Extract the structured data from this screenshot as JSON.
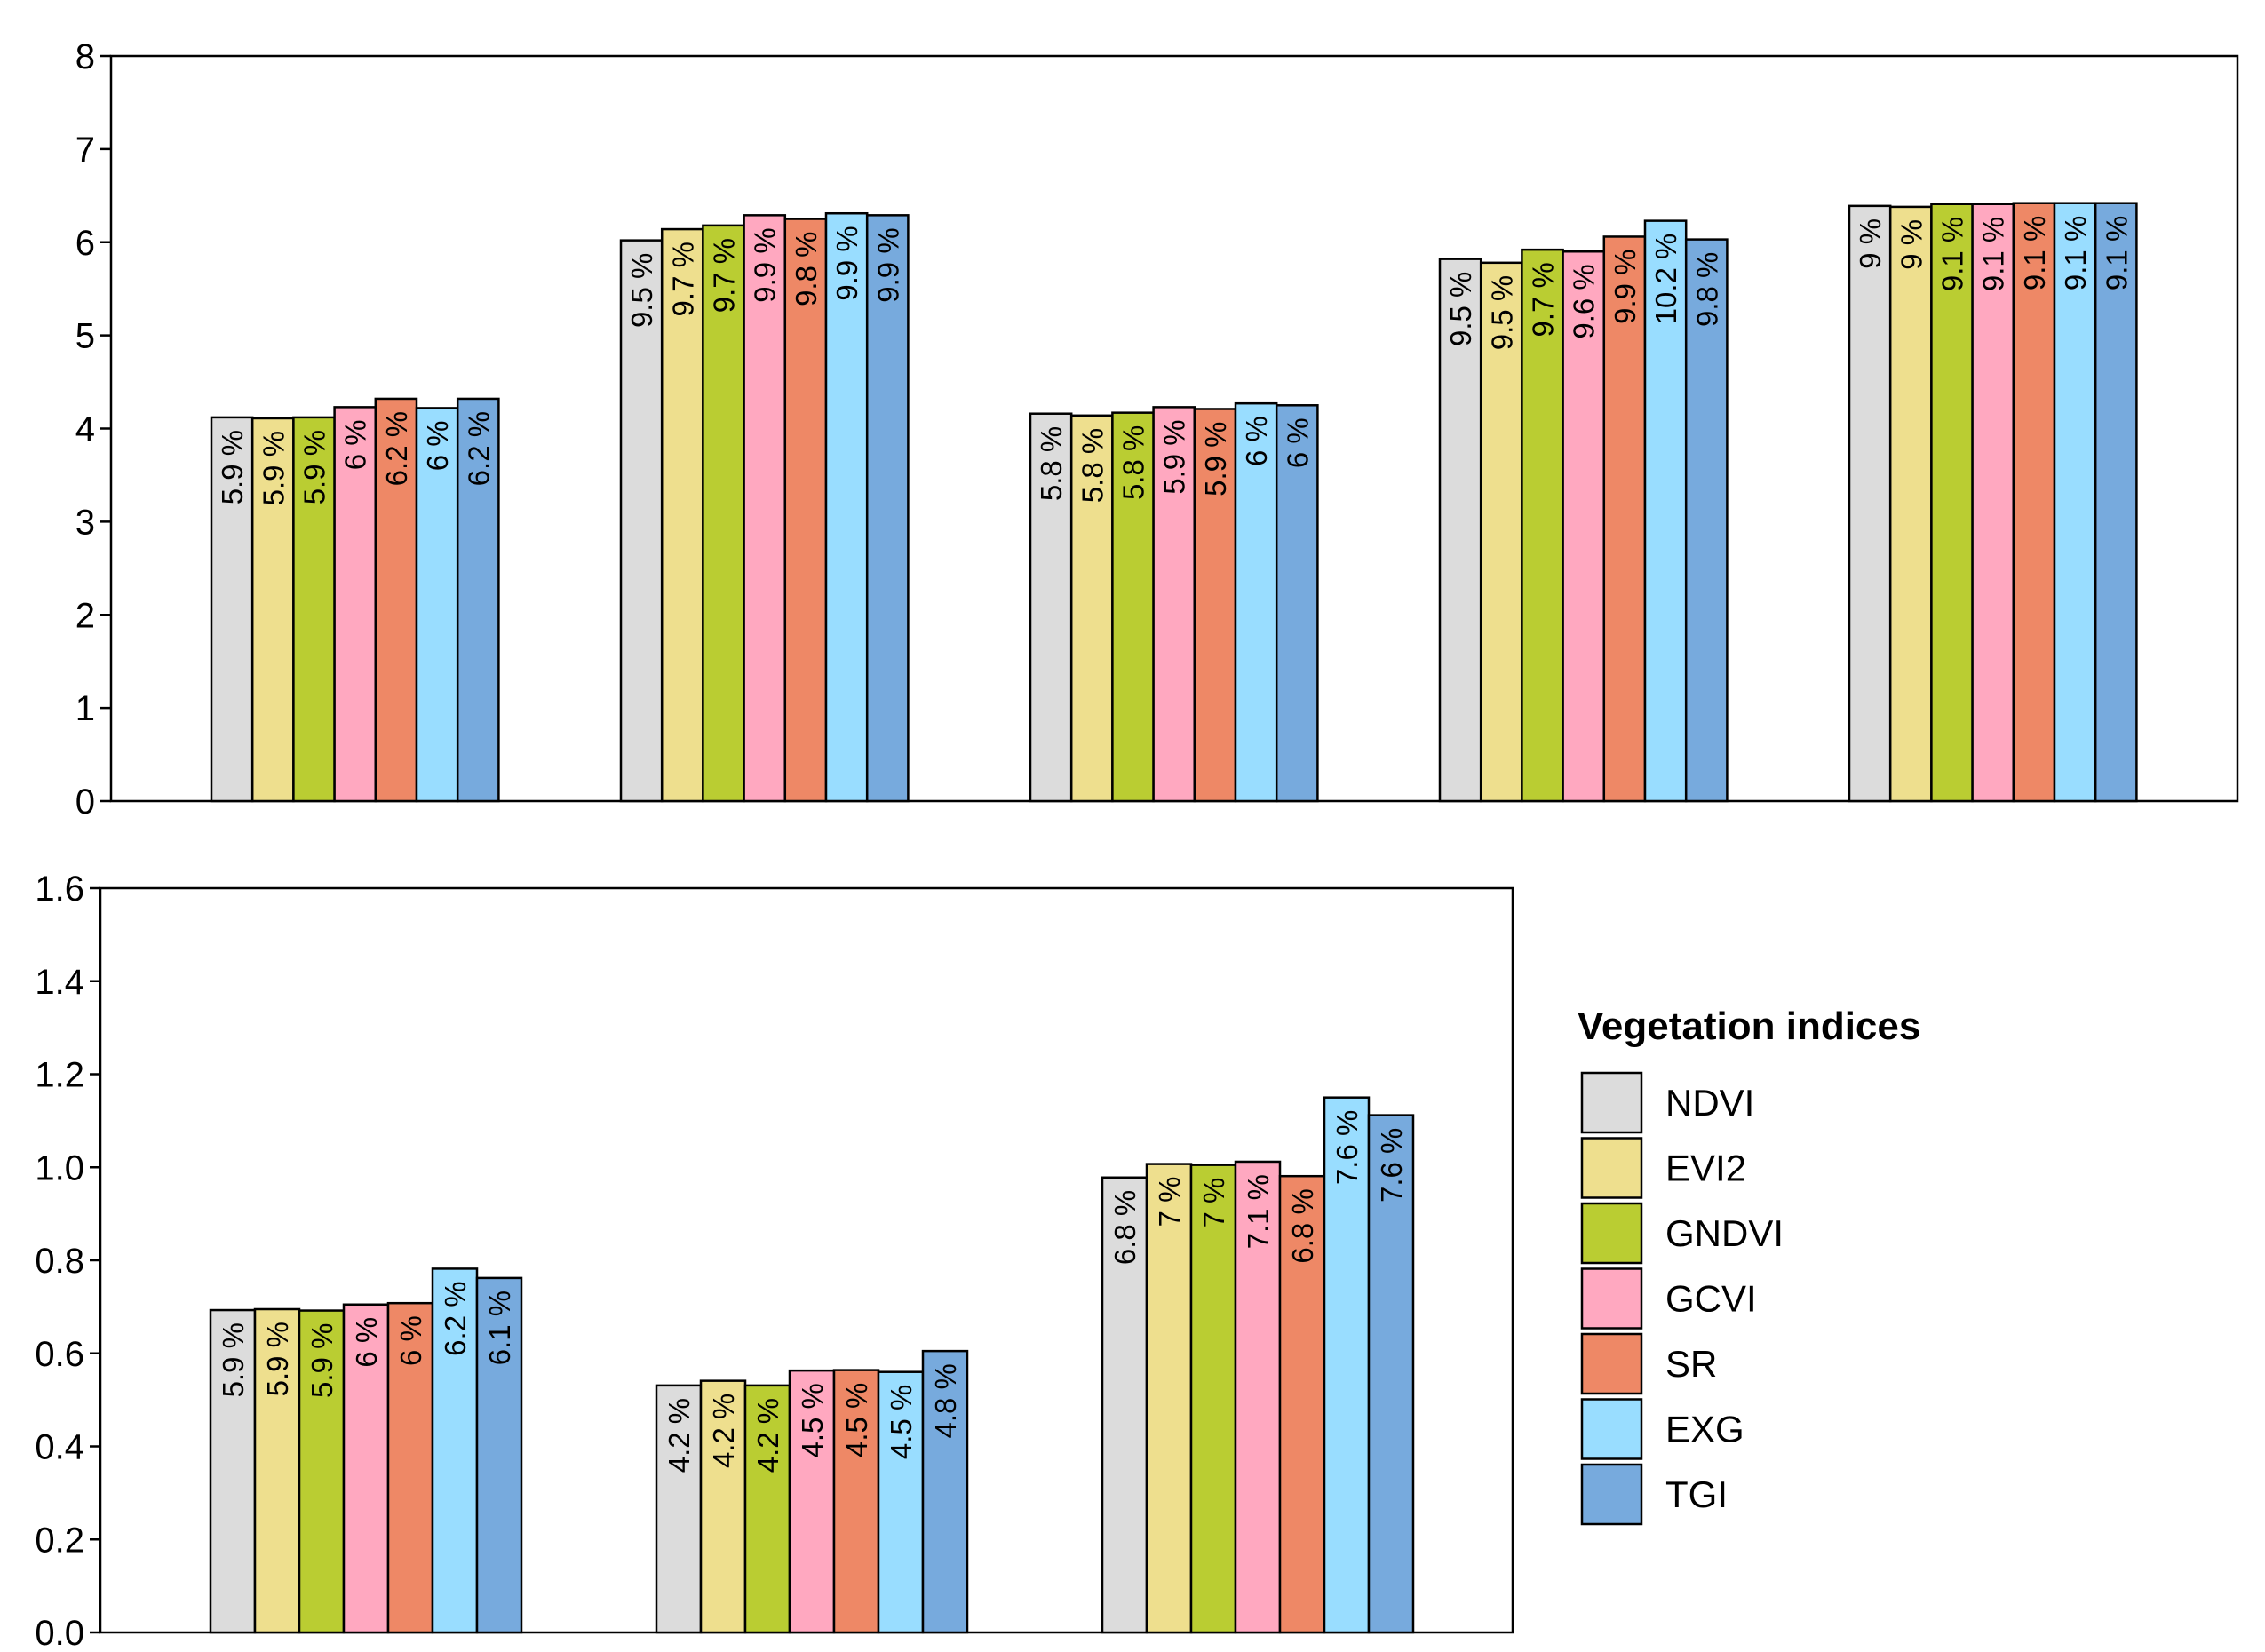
{
  "legend": {
    "title": "Vegetation indices"
  },
  "series": [
    {
      "name": "NDVI",
      "color": "#DCDCDC"
    },
    {
      "name": "EVI2",
      "color": "#EEDF8E"
    },
    {
      "name": "GNDVI",
      "color": "#BACD32"
    },
    {
      "name": "GCVI",
      "color": "#FFA8C0"
    },
    {
      "name": "SR",
      "color": "#EE8866"
    },
    {
      "name": "EXG",
      "color": "#99DDFF"
    },
    {
      "name": "TGI",
      "color": "#77AADD"
    }
  ],
  "chart_data": [
    {
      "type": "bar",
      "ylim": [
        0,
        8
      ],
      "yticks": [
        "0",
        "1",
        "2",
        "3",
        "4",
        "5",
        "6",
        "7",
        "8"
      ],
      "groups": [
        {
          "values": [
            4.12,
            4.11,
            4.12,
            4.23,
            4.32,
            4.22,
            4.32
          ],
          "labels": [
            "5.9 %",
            "5.9 %",
            "5.9 %",
            "6 %",
            "6.2 %",
            "6 %",
            "6.2 %"
          ]
        },
        {
          "values": [
            6.02,
            6.14,
            6.18,
            6.29,
            6.25,
            6.31,
            6.29
          ],
          "labels": [
            "9.5 %",
            "9.7 %",
            "9.7 %",
            "9.9 %",
            "9.8 %",
            "9.9 %",
            "9.9 %"
          ]
        },
        {
          "values": [
            4.16,
            4.14,
            4.17,
            4.23,
            4.21,
            4.27,
            4.25
          ],
          "labels": [
            "5.8 %",
            "5.8 %",
            "5.8 %",
            "5.9 %",
            "5.9 %",
            "6 %",
            "6 %"
          ]
        },
        {
          "values": [
            5.82,
            5.78,
            5.92,
            5.9,
            6.06,
            6.23,
            6.03
          ],
          "labels": [
            "9.5 %",
            "9.5 %",
            "9.7 %",
            "9.6 %",
            "9.9 %",
            "10.2 %",
            "9.8 %"
          ]
        },
        {
          "values": [
            6.39,
            6.38,
            6.41,
            6.41,
            6.42,
            6.42,
            6.42
          ],
          "labels": [
            "9 %",
            "9 %",
            "9.1 %",
            "9.1 %",
            "9.1 %",
            "9.1 %",
            "9.1 %"
          ]
        }
      ]
    },
    {
      "type": "bar",
      "ylim": [
        0,
        1.6
      ],
      "yticks": [
        "0.0",
        "0.2",
        "0.4",
        "0.6",
        "0.8",
        "1.0",
        "1.2",
        "1.4",
        "1.6"
      ],
      "groups": [
        {
          "values": [
            0.693,
            0.695,
            0.692,
            0.705,
            0.708,
            0.782,
            0.762
          ],
          "labels": [
            "5.9 %",
            "5.9 %",
            "5.9 %",
            "6 %",
            "6 %",
            "6.2 %",
            "6.1 %"
          ]
        },
        {
          "values": [
            0.531,
            0.541,
            0.531,
            0.563,
            0.564,
            0.56,
            0.605
          ],
          "labels": [
            "4.2 %",
            "4.2 %",
            "4.2 %",
            "4.5 %",
            "4.5 %",
            "4.5 %",
            "4.8 %"
          ]
        },
        {
          "values": [
            0.978,
            1.007,
            1.005,
            1.012,
            0.981,
            1.15,
            1.112
          ],
          "labels": [
            "6.8 %",
            "7 %",
            "7 %",
            "7.1 %",
            "6.8 %",
            "7.6 %",
            "7.6 %"
          ]
        }
      ]
    }
  ]
}
